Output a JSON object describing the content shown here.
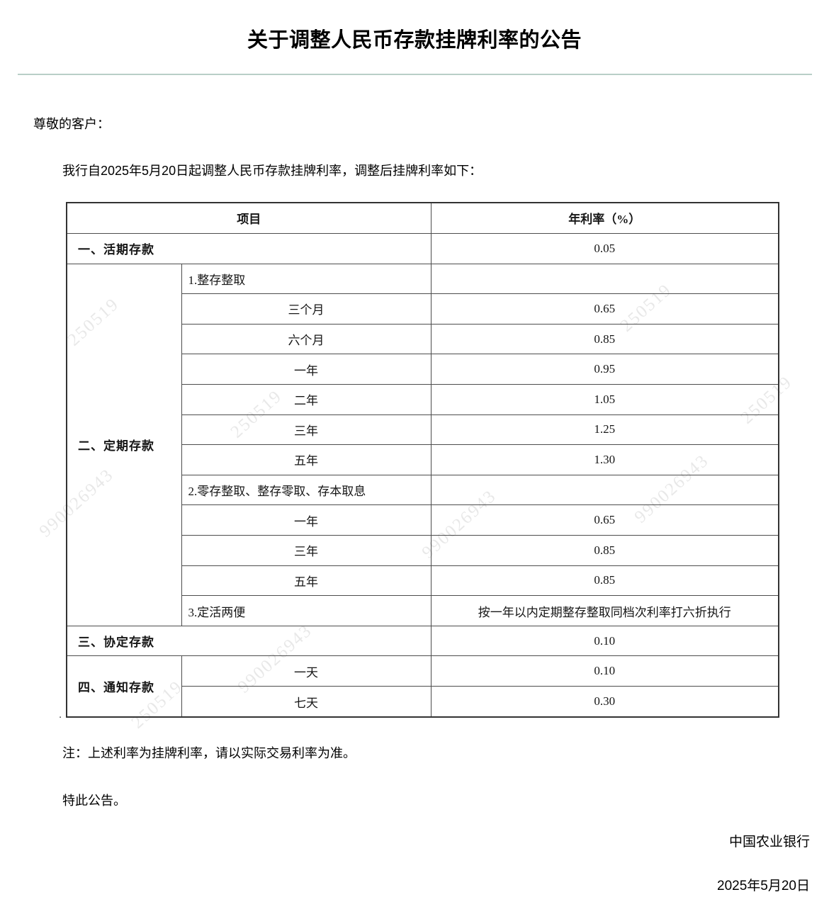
{
  "header": {
    "title": "关于调整人民币存款挂牌利率的公告"
  },
  "body": {
    "greeting": "尊敬的客户：",
    "intro": "我行自2025年5月20日起调整人民币存款挂牌利率，调整后挂牌利率如下：",
    "note": "注：上述利率为挂牌利率，请以实际交易利率为准。",
    "closing": "特此公告。",
    "stray_mark": "."
  },
  "table": {
    "columns": {
      "item": "项目",
      "rate": "年利率（%）"
    },
    "sections": [
      {
        "category": "一、活期存款",
        "rate": "0.05"
      },
      {
        "category": "二、定期存款",
        "rows": [
          {
            "label": "1.整存整取",
            "rate": "",
            "style": "sub"
          },
          {
            "label": "三个月",
            "rate": "0.65",
            "style": "term"
          },
          {
            "label": "六个月",
            "rate": "0.85",
            "style": "term"
          },
          {
            "label": "一年",
            "rate": "0.95",
            "style": "term"
          },
          {
            "label": "二年",
            "rate": "1.05",
            "style": "term"
          },
          {
            "label": "三年",
            "rate": "1.25",
            "style": "term"
          },
          {
            "label": "五年",
            "rate": "1.30",
            "style": "term"
          },
          {
            "label": "2.零存整取、整存零取、存本取息",
            "rate": "",
            "style": "sub"
          },
          {
            "label": "一年",
            "rate": "0.65",
            "style": "term"
          },
          {
            "label": "三年",
            "rate": "0.85",
            "style": "term"
          },
          {
            "label": "五年",
            "rate": "0.85",
            "style": "term"
          },
          {
            "label": "3.定活两便",
            "rate": "按一年以内定期整存整取同档次利率打六折执行",
            "style": "sub"
          }
        ]
      },
      {
        "category": "三、协定存款",
        "rate": "0.10"
      },
      {
        "category": "四、通知存款",
        "rows": [
          {
            "label": "一天",
            "rate": "0.10",
            "style": "term"
          },
          {
            "label": "七天",
            "rate": "0.30",
            "style": "term"
          }
        ]
      }
    ]
  },
  "watermark": {
    "texts": [
      "990026943",
      "250519"
    ]
  },
  "footer": {
    "bank": "中国农业银行",
    "date": "2025年5月20日"
  },
  "colors": {
    "divider": "#b9cfc7",
    "table_border": "#4d4d4d"
  }
}
